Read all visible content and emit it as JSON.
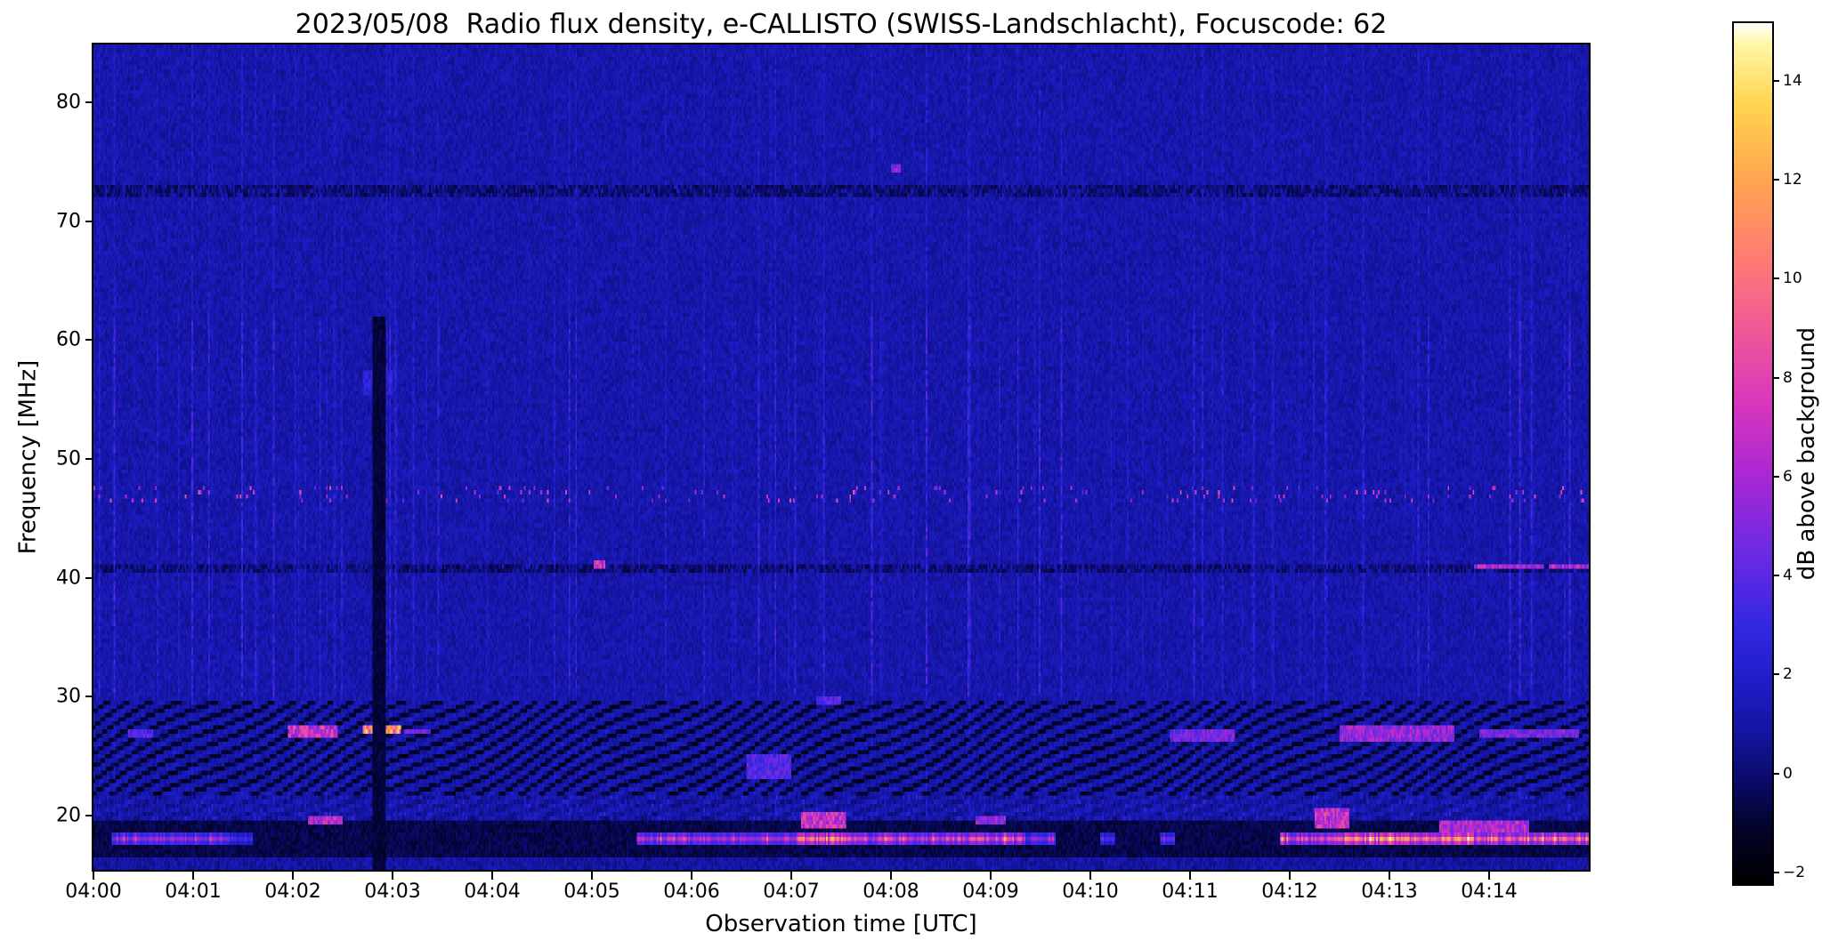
{
  "chart_data": {
    "type": "heatmap",
    "title": "2023/05/08  Radio flux density, e-CALLISTO (SWISS-Landschlacht), Focuscode: 62",
    "xlabel": "Observation time [UTC]",
    "ylabel": "Frequency [MHz]",
    "x_ticks": [
      "04:00",
      "04:01",
      "04:02",
      "04:03",
      "04:04",
      "04:05",
      "04:06",
      "04:07",
      "04:08",
      "04:09",
      "04:10",
      "04:11",
      "04:12",
      "04:13",
      "04:14"
    ],
    "x_range_minutes": [
      0,
      15
    ],
    "y_tick_values": [
      80,
      70,
      60,
      50,
      40,
      30,
      20
    ],
    "y_tick_labels": [
      "80",
      "70",
      "60",
      "50",
      "40",
      "30",
      "20"
    ],
    "y_range_mhz": [
      15.4,
      84.9
    ],
    "grid": {
      "cols": 900,
      "rows": 200
    },
    "colorbar": {
      "label": "dB above background",
      "tick_values": [
        14,
        12,
        10,
        8,
        6,
        4,
        2,
        0,
        -2
      ],
      "tick_labels": [
        "14",
        "12",
        "10",
        "8",
        "6",
        "4",
        "2",
        "0",
        "−2"
      ],
      "range": [
        -2.2,
        15.2
      ]
    },
    "colormap_stops": [
      {
        "v": -2.2,
        "c": "#000000"
      },
      {
        "v": -1.0,
        "c": "#03032e"
      },
      {
        "v": -0.2,
        "c": "#0a0a63"
      },
      {
        "v": 0.8,
        "c": "#14149e"
      },
      {
        "v": 1.8,
        "c": "#1d1dc4"
      },
      {
        "v": 3.0,
        "c": "#3327e2"
      },
      {
        "v": 4.5,
        "c": "#6c2ae2"
      },
      {
        "v": 6.0,
        "c": "#a727d4"
      },
      {
        "v": 7.5,
        "c": "#d936bc"
      },
      {
        "v": 9.0,
        "c": "#f05898"
      },
      {
        "v": 10.5,
        "c": "#ff7d72"
      },
      {
        "v": 12.0,
        "c": "#ffa44f"
      },
      {
        "v": 13.5,
        "c": "#ffd34e"
      },
      {
        "v": 14.8,
        "c": "#fff7a8"
      },
      {
        "v": 15.2,
        "c": "#ffffff"
      }
    ],
    "features": {
      "background_db": [
        0.5,
        1.8
      ],
      "vertical_streaks": {
        "probability": 0.07
      },
      "herringbone_band": {
        "f_range": [
          21.8,
          29.5
        ]
      },
      "mottled_band": {
        "f_range": [
          19.6,
          21.8
        ]
      },
      "quiet_band": {
        "f_range": [
          16.3,
          19.6
        ],
        "db": [
          -1.1,
          0.0
        ]
      },
      "bottom_edge_band": {
        "f_range": [
          15.4,
          16.3
        ],
        "db": [
          0.2,
          1.7
        ]
      },
      "rfi_line": {
        "f_range": [
          17.55,
          18.45
        ],
        "segments": [
          [
            0.18,
            1.35,
            7
          ],
          [
            1.35,
            1.6,
            4
          ],
          [
            5.45,
            7.05,
            8
          ],
          [
            7.05,
            7.6,
            12
          ],
          [
            7.6,
            8.65,
            9
          ],
          [
            8.65,
            9.35,
            10
          ],
          [
            9.35,
            9.65,
            6
          ],
          [
            10.1,
            10.25,
            5
          ],
          [
            10.7,
            10.85,
            5
          ],
          [
            11.9,
            12.55,
            10
          ],
          [
            12.55,
            13.85,
            13
          ],
          [
            13.85,
            15.0,
            11
          ]
        ]
      },
      "dark_lines": [
        [
          40.4,
          41.15
        ],
        [
          72.2,
          73.0
        ]
      ],
      "speckle_row": {
        "f_range": [
          46.4,
          47.6
        ],
        "probability": 0.05,
        "db": [
          4,
          9
        ]
      },
      "dark_lane": {
        "t_range": [
          2.8,
          2.94
        ],
        "f_range": [
          15.4,
          62
        ]
      },
      "bursts": [
        [
          1.95,
          2.45,
          26.6,
          27.5,
          9
        ],
        [
          2.7,
          3.08,
          26.7,
          27.6,
          14
        ],
        [
          3.12,
          3.38,
          26.8,
          27.3,
          6
        ],
        [
          0.35,
          0.6,
          26.6,
          27.2,
          5
        ],
        [
          10.8,
          11.45,
          26.3,
          27.2,
          6
        ],
        [
          12.5,
          13.65,
          26.3,
          27.4,
          7
        ],
        [
          13.9,
          14.9,
          26.4,
          27.1,
          6
        ],
        [
          2.15,
          2.5,
          19.2,
          20.0,
          8
        ],
        [
          7.1,
          7.55,
          18.9,
          20.4,
          9
        ],
        [
          8.85,
          9.15,
          19.2,
          20.0,
          7
        ],
        [
          12.25,
          12.6,
          18.9,
          20.5,
          9
        ],
        [
          13.5,
          14.4,
          18.6,
          19.6,
          8
        ],
        [
          5.02,
          5.14,
          40.6,
          41.3,
          9
        ],
        [
          13.85,
          14.55,
          40.6,
          41.2,
          8
        ],
        [
          14.6,
          15.0,
          40.6,
          41.2,
          8
        ],
        [
          2.7,
          3.0,
          55.5,
          57.5,
          3.2
        ],
        [
          8.0,
          8.1,
          74.0,
          74.7,
          7
        ],
        [
          6.55,
          7.0,
          23.0,
          25.0,
          5
        ],
        [
          7.25,
          7.5,
          29.3,
          30.0,
          5
        ],
        [
          2.8,
          2.88,
          27.8,
          31.5,
          4
        ]
      ]
    }
  }
}
